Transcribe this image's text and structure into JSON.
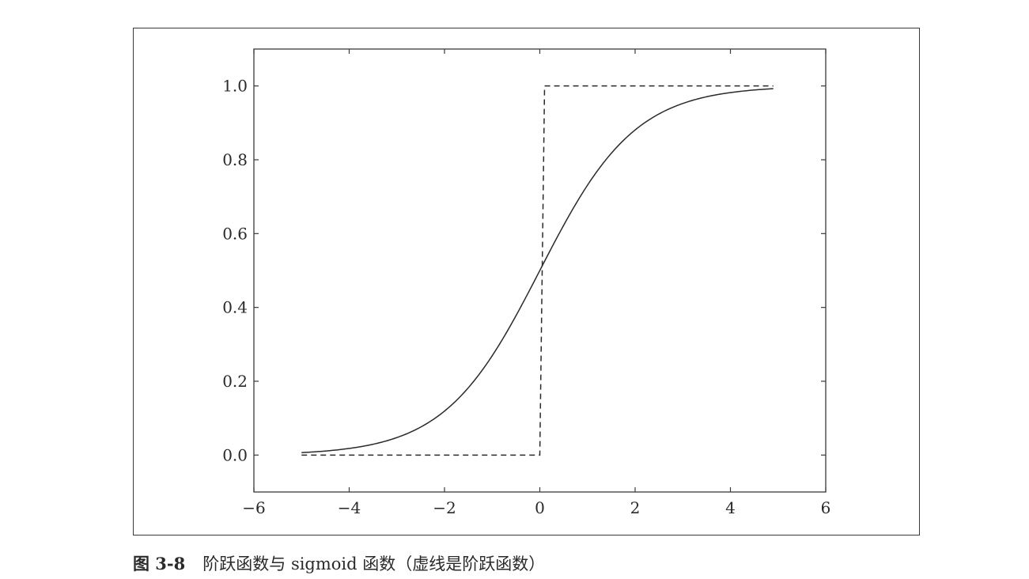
{
  "caption": {
    "label": "图 3-8",
    "text": "阶跃函数与 sigmoid 函数（虚线是阶跃函数）"
  },
  "chart_data": {
    "type": "line",
    "title": "",
    "xlabel": "",
    "ylabel": "",
    "xlim": [
      -6,
      6
    ],
    "ylim": [
      -0.1,
      1.1
    ],
    "xticks": [
      -6,
      -4,
      -2,
      0,
      2,
      4,
      6
    ],
    "xtick_labels": [
      "−6",
      "−4",
      "−2",
      "0",
      "2",
      "4",
      "6"
    ],
    "yticks": [
      0.0,
      0.2,
      0.4,
      0.6,
      0.8,
      1.0
    ],
    "ytick_labels": [
      "0.0",
      "0.2",
      "0.4",
      "0.6",
      "0.8",
      "1.0"
    ],
    "grid": false,
    "legend": false,
    "series": [
      {
        "function": "sigmoid",
        "style": "solid",
        "color": "#2a2a2a",
        "x": [
          -5.0,
          -4.5,
          -4.0,
          -3.5,
          -3.0,
          -2.5,
          -2.0,
          -1.5,
          -1.0,
          -0.5,
          0.0,
          0.5,
          1.0,
          1.5,
          2.0,
          2.5,
          3.0,
          3.5,
          4.0,
          4.5,
          4.9
        ],
        "y": [
          0.0067,
          0.011,
          0.018,
          0.029,
          0.047,
          0.076,
          0.119,
          0.182,
          0.269,
          0.378,
          0.5,
          0.622,
          0.731,
          0.818,
          0.881,
          0.924,
          0.953,
          0.971,
          0.982,
          0.989,
          0.993
        ]
      },
      {
        "function": "step",
        "style": "dashed",
        "color": "#2a2a2a",
        "x": [
          -5.0,
          0.0,
          0.1,
          4.9
        ],
        "y": [
          0.0,
          0.0,
          1.0,
          1.0
        ]
      }
    ]
  }
}
